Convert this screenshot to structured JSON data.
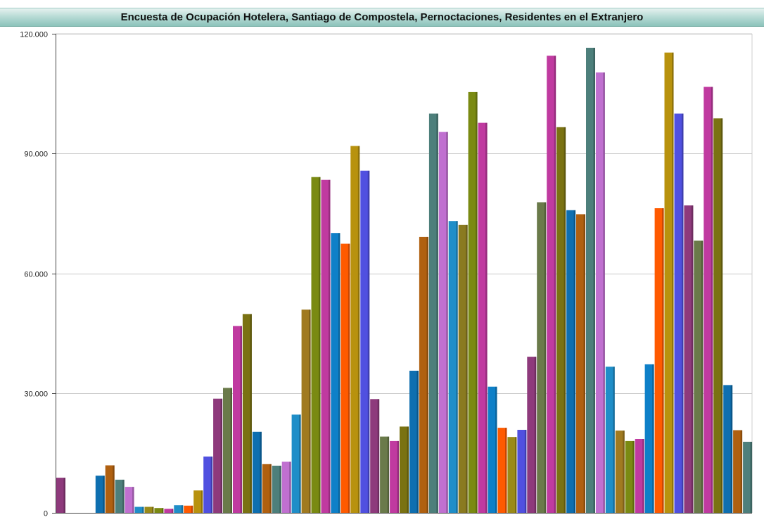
{
  "chart_data": {
    "type": "bar",
    "title": "Encuesta de Ocupación Hotelera, Santiago de Compostela, Pernoctaciones, Residentes en el Extranjero",
    "xlabel": "",
    "ylabel": "",
    "ylim": [
      0,
      120000
    ],
    "yticks": [
      0,
      30000,
      60000,
      90000,
      120000
    ],
    "ytick_labels": [
      "0",
      "30.000",
      "60.000",
      "90.000",
      "120.000"
    ],
    "grid": true,
    "legend": "none",
    "values": [
      8800,
      0,
      0,
      0,
      9300,
      11900,
      8300,
      6500,
      1500,
      1500,
      1200,
      1000,
      1900,
      1800,
      5600,
      14100,
      28600,
      31300,
      46800,
      49800,
      20300,
      12200,
      11800,
      12800,
      24600,
      50900,
      84100,
      83400,
      70100,
      67400,
      91900,
      85700,
      28500,
      19100,
      18000,
      21600,
      35600,
      69100,
      100000,
      95400,
      73100,
      72100,
      105400,
      97700,
      31600,
      21300,
      19000,
      20800,
      39100,
      77800,
      114500,
      96600,
      75800,
      74800,
      116500,
      110300,
      36600,
      20600,
      18000,
      18500,
      37200,
      76300,
      115300,
      100000,
      77000,
      68200,
      106700,
      98800,
      32000,
      20700,
      17800
    ],
    "colors": [
      "#8e3a7c",
      "#555555",
      "#555555",
      "#555555",
      "#0e6fb0",
      "#b06010",
      "#4d7f7b",
      "#c070d0",
      "#1f8ec8",
      "#9a8a18",
      "#7a8a12",
      "#c03aa0",
      "#1f8ec8",
      "#ff5a00",
      "#b8920e",
      "#5050e0",
      "#8e3a7c",
      "#6a7a4a",
      "#c03aa0",
      "#7a7212",
      "#0e6fb0",
      "#b06010",
      "#4d7f7b",
      "#c070d0",
      "#1f8ec8",
      "#a07a20",
      "#7a8a12",
      "#c03aa0",
      "#0e80c8",
      "#ff5a00",
      "#b8920e",
      "#5050e0",
      "#8e3a7c",
      "#6a7a4a",
      "#c03aa0",
      "#7a7212",
      "#0e6fb0",
      "#b06010",
      "#4d7f7b",
      "#c070d0",
      "#1f8ec8",
      "#8a7a20",
      "#7a8a12",
      "#c03aa0",
      "#0e80c8",
      "#ff5a00",
      "#9a8a18",
      "#5050e0",
      "#8e3a7c",
      "#6a7a4a",
      "#c03aa0",
      "#7a7212",
      "#0e6fb0",
      "#b06010",
      "#4d7f7b",
      "#c070d0",
      "#1f8ec8",
      "#a07a20",
      "#7a8a12",
      "#c03aa0",
      "#0e80c8",
      "#ff5a00",
      "#b8920e",
      "#5050e0",
      "#8e3a7c",
      "#6a7a4a",
      "#c03aa0",
      "#7a7212",
      "#0e6fb0",
      "#b06010",
      "#4d7f7b"
    ]
  }
}
